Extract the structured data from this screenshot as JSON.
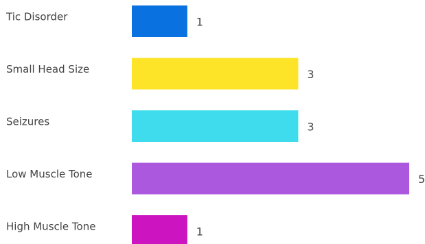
{
  "chart_data": {
    "type": "bar",
    "orientation": "horizontal",
    "categories": [
      "Tic Disorder",
      "Small Head Size",
      "Seizures",
      "Low Muscle Tone",
      "High Muscle Tone"
    ],
    "values": [
      1,
      3,
      3,
      5,
      1
    ],
    "colors": [
      "#0a72e0",
      "#fde428",
      "#3edcec",
      "#ac58de",
      "#cc15c0"
    ],
    "title": "",
    "xlabel": "",
    "ylabel": "",
    "xlim": [
      0,
      5
    ],
    "grid": false,
    "legend": "none",
    "data_labels": true
  }
}
